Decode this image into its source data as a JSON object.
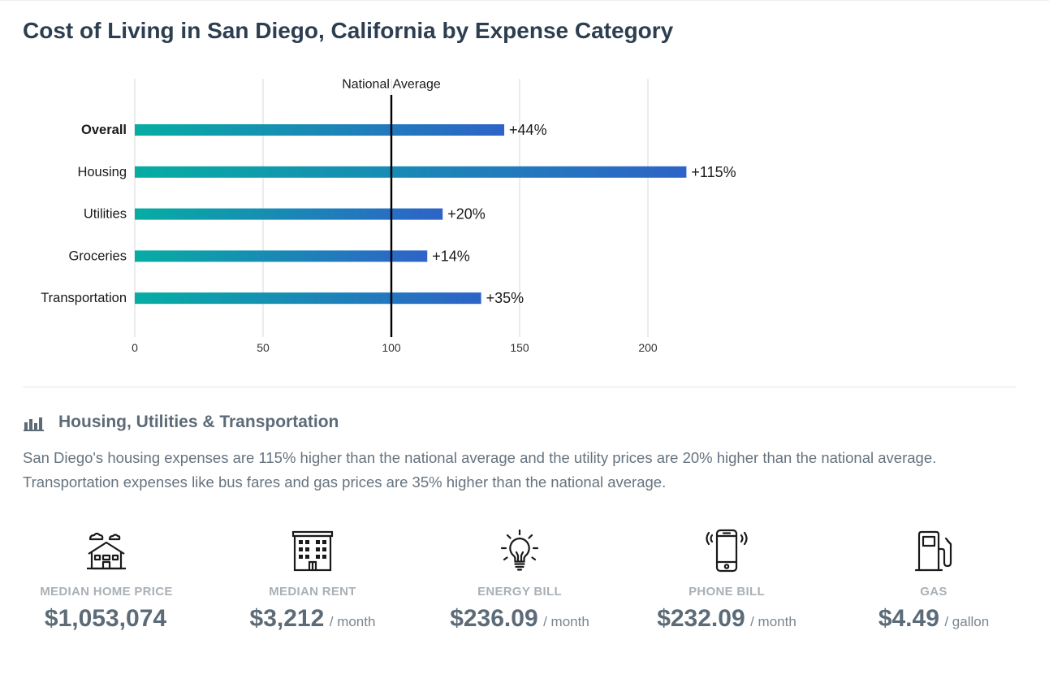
{
  "page": {
    "title": "Cost of Living in San Diego, California by Expense Category"
  },
  "chart_data": {
    "type": "bar",
    "orientation": "horizontal",
    "categories": [
      "Overall",
      "Housing",
      "Utilities",
      "Groceries",
      "Transportation"
    ],
    "values": [
      144,
      215,
      120,
      114,
      135
    ],
    "data_labels": [
      "+44%",
      "+115%",
      "+20%",
      "+14%",
      "+35%"
    ],
    "xlim": [
      0,
      220
    ],
    "xticks": [
      0,
      50,
      100,
      150,
      200
    ],
    "reference_line": {
      "value": 100,
      "label": "National Average"
    },
    "grid": true,
    "bold_category": "Overall",
    "gradient": [
      "#06ada3",
      "#2e63c8"
    ]
  },
  "section": {
    "icon": "bar-chart-icon",
    "title": "Housing, Utilities & Transportation",
    "text": "San Diego's housing expenses are 115% higher than the national average and the utility prices are 20% higher than the national average. Transportation expenses like bus fares and gas prices are 35% higher than the national average."
  },
  "stats": [
    {
      "icon": "house-icon",
      "label": "MEDIAN HOME PRICE",
      "value": "$1,053,074",
      "unit": ""
    },
    {
      "icon": "apartment-building-icon",
      "label": "MEDIAN RENT",
      "value": "$3,212",
      "unit": "/ month"
    },
    {
      "icon": "lightbulb-icon",
      "label": "ENERGY BILL",
      "value": "$236.09",
      "unit": "/ month"
    },
    {
      "icon": "phone-icon",
      "label": "PHONE BILL",
      "value": "$232.09",
      "unit": "/ month"
    },
    {
      "icon": "gas-pump-icon",
      "label": "GAS",
      "value": "$4.49",
      "unit": "/ gallon"
    }
  ]
}
